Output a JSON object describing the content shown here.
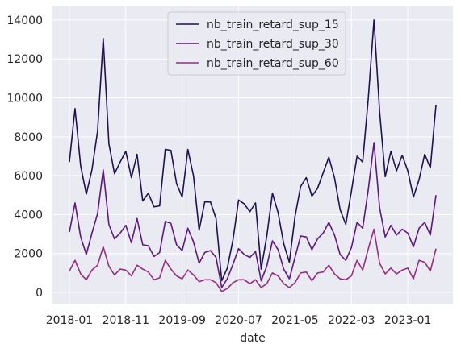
{
  "chart_data": {
    "type": "line",
    "xlabel": "date",
    "x": [
      "2018-01",
      "2018-02",
      "2018-03",
      "2018-04",
      "2018-05",
      "2018-06",
      "2018-07",
      "2018-08",
      "2018-09",
      "2018-10",
      "2018-11",
      "2018-12",
      "2019-01",
      "2019-02",
      "2019-03",
      "2019-04",
      "2019-05",
      "2019-06",
      "2019-07",
      "2019-08",
      "2019-09",
      "2019-10",
      "2019-11",
      "2019-12",
      "2020-01",
      "2020-02",
      "2020-03",
      "2020-04",
      "2020-05",
      "2020-06",
      "2020-07",
      "2020-08",
      "2020-09",
      "2020-10",
      "2020-11",
      "2020-12",
      "2021-01",
      "2021-02",
      "2021-03",
      "2021-04",
      "2021-05",
      "2021-06",
      "2021-07",
      "2021-08",
      "2021-09",
      "2021-10",
      "2021-11",
      "2021-12",
      "2022-01",
      "2022-02",
      "2022-03",
      "2022-04",
      "2022-05",
      "2022-06",
      "2022-07",
      "2022-08",
      "2022-09",
      "2022-10",
      "2022-11",
      "2022-12",
      "2023-01",
      "2023-02",
      "2023-03",
      "2023-04",
      "2023-05",
      "2023-06"
    ],
    "series": [
      {
        "name": "nb_train_retard_sup_15",
        "color": "#221150",
        "values": [
          6700,
          9450,
          6500,
          5050,
          6300,
          8300,
          13050,
          7650,
          6100,
          6700,
          7250,
          5900,
          7100,
          4700,
          5100,
          4400,
          4450,
          7350,
          7300,
          5600,
          4900,
          7350,
          6000,
          3200,
          4650,
          4650,
          3800,
          600,
          1250,
          2700,
          4750,
          4550,
          4150,
          4600,
          1200,
          2900,
          5100,
          4100,
          2500,
          1550,
          3900,
          5450,
          5900,
          4950,
          5350,
          6150,
          6950,
          5900,
          4250,
          3500,
          5200,
          7000,
          6700,
          10000,
          14000,
          9300,
          5950,
          7250,
          6250,
          7050,
          6250,
          4900,
          5800,
          7100,
          6400,
          9650
        ]
      },
      {
        "name": "nb_train_retard_sup_30",
        "color": "#5f187f",
        "values": [
          3100,
          4600,
          2850,
          1950,
          3050,
          4050,
          6300,
          3500,
          2750,
          3050,
          3450,
          2550,
          3800,
          2450,
          2400,
          1850,
          2050,
          3650,
          3550,
          2450,
          2150,
          3300,
          2600,
          1500,
          2050,
          2150,
          1800,
          250,
          700,
          1450,
          2250,
          1950,
          1800,
          2100,
          600,
          1350,
          2650,
          2200,
          1200,
          700,
          1800,
          2900,
          2850,
          2200,
          2750,
          3050,
          3600,
          2950,
          1950,
          1650,
          2300,
          3600,
          3300,
          5300,
          7700,
          4350,
          2850,
          3450,
          2950,
          3250,
          3050,
          2350,
          3300,
          3600,
          2950,
          5000
        ]
      },
      {
        "name": "nb_train_retard_sup_60",
        "color": "#982d80",
        "values": [
          1100,
          1650,
          950,
          650,
          1150,
          1400,
          2350,
          1350,
          900,
          1200,
          1150,
          850,
          1400,
          1200,
          1050,
          650,
          750,
          1650,
          1200,
          850,
          700,
          1150,
          900,
          550,
          650,
          650,
          500,
          50,
          200,
          500,
          650,
          650,
          450,
          650,
          250,
          450,
          1000,
          850,
          450,
          250,
          500,
          1000,
          1050,
          600,
          1000,
          1050,
          1400,
          950,
          700,
          650,
          850,
          1650,
          1150,
          2250,
          3250,
          1500,
          950,
          1250,
          950,
          1150,
          1250,
          700,
          1650,
          1550,
          1100,
          2250
        ]
      }
    ],
    "xlim": [
      "2017-10",
      "2023-09"
    ],
    "xticks": [
      "2018-01",
      "2018-11",
      "2019-09",
      "2020-07",
      "2021-05",
      "2022-03",
      "2023-01"
    ],
    "ylim": [
      -620,
      14700
    ],
    "yticks": [
      0,
      2000,
      4000,
      6000,
      8000,
      10000,
      12000,
      14000
    ],
    "grid": true,
    "legend": "upper center"
  }
}
